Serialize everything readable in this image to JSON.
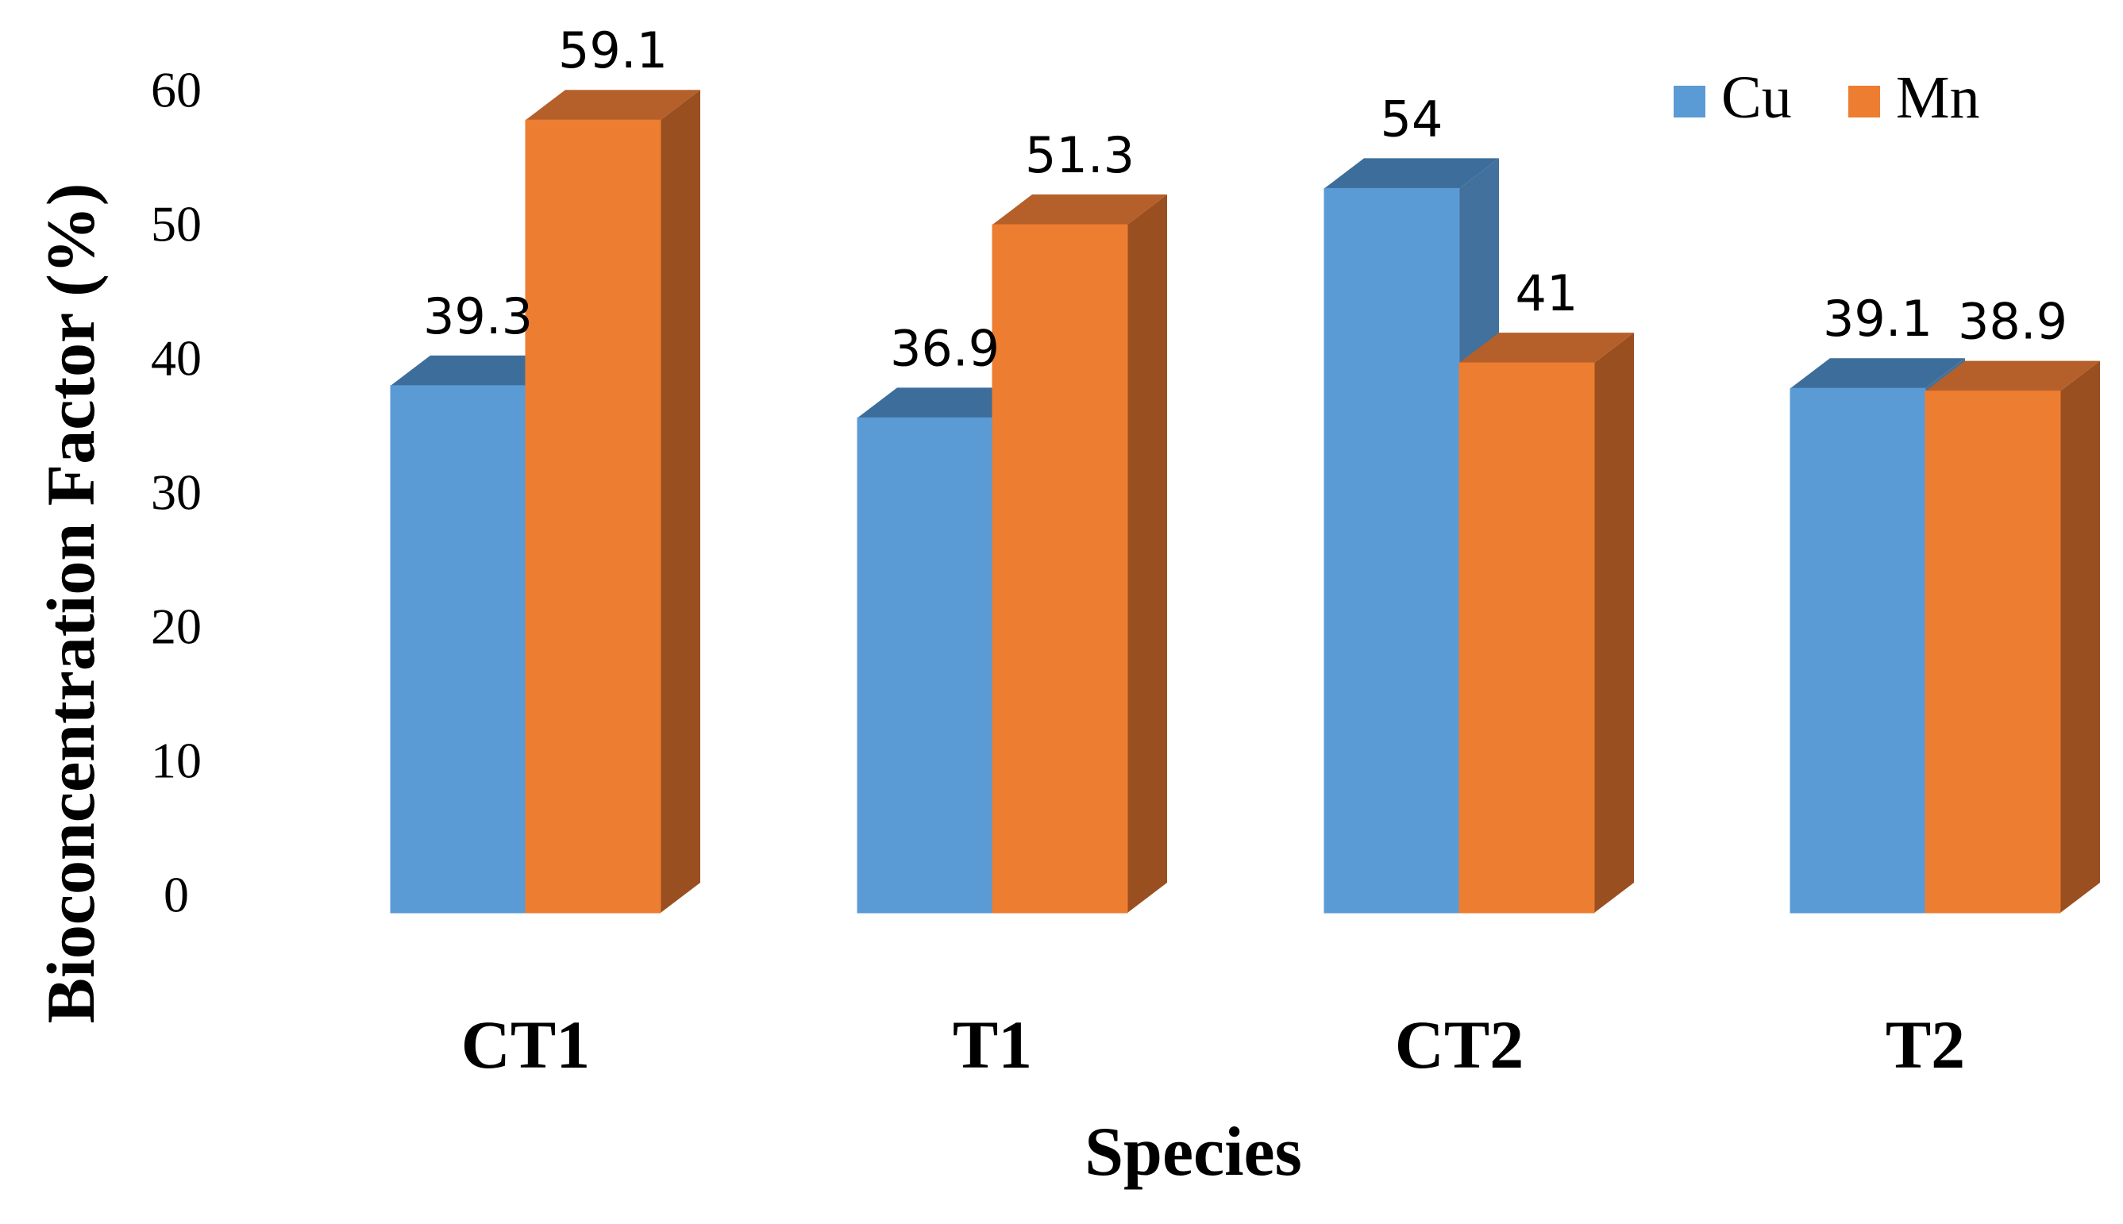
{
  "chart_data": {
    "type": "bar",
    "style": "3d-clustered-column",
    "categories": [
      "CT1",
      "T1",
      "CT2",
      "T2"
    ],
    "series": [
      {
        "name": "Cu",
        "values": [
          39.3,
          36.9,
          54,
          39.1
        ],
        "labels": [
          "39.3",
          "36.9",
          "54",
          "39.1"
        ],
        "color": "#5B9BD5",
        "side_color": "#41719C",
        "top_color": "#3D6E9B"
      },
      {
        "name": "Mn",
        "values": [
          59.1,
          51.3,
          41,
          38.9
        ],
        "labels": [
          "59.1",
          "51.3",
          "41",
          "38.9"
        ],
        "color": "#ED7D31",
        "side_color": "#994F20",
        "top_color": "#B5602A"
      }
    ],
    "title": "",
    "xlabel": "Species",
    "ylabel": "Bioconcentration Factor (%)",
    "ylim": [
      0,
      60
    ],
    "yticks": [
      "0",
      "10",
      "20",
      "30",
      "40",
      "50",
      "60"
    ],
    "grid": false,
    "legend": "top-right"
  }
}
